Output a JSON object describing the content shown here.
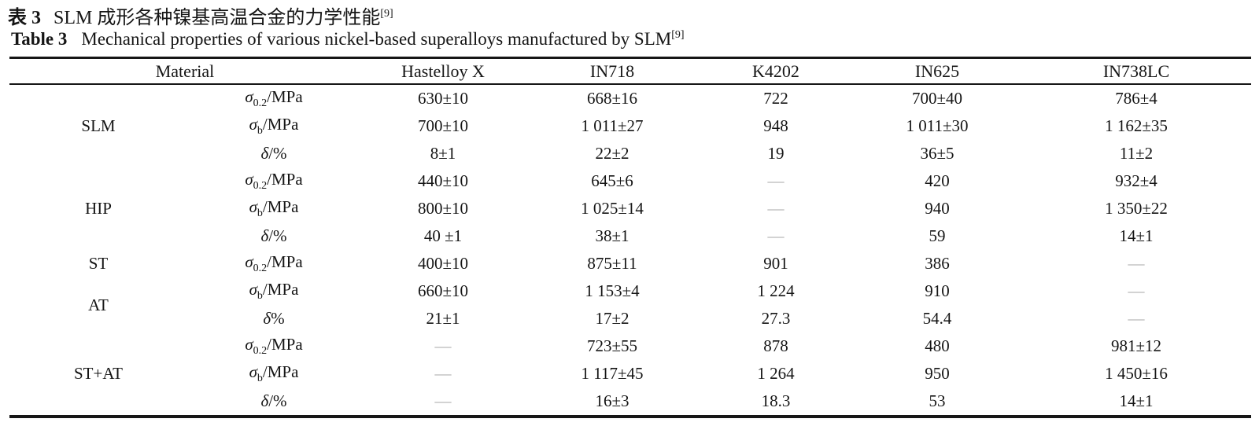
{
  "captions": {
    "cn_label": "表 3",
    "cn_text": "SLM 成形各种镍基高温合金的力学性能",
    "cn_ref": "[9]",
    "en_label": "Table 3",
    "en_text": "Mechanical properties of various nickel-based superalloys manufactured by SLM",
    "en_ref": "[9]"
  },
  "table": {
    "material_header": "Material",
    "alloy_columns": [
      "Hastelloy X",
      "IN718",
      "K4202",
      "IN625",
      "IN738LC"
    ],
    "dash": "—",
    "dash_color": "#a7a7a7",
    "groups": [
      {
        "label": "SLM",
        "rows": [
          {
            "property": {
              "base": "σ",
              "sub": "0.2",
              "suffix": "/MPa"
            },
            "values": [
              "630±10",
              "668±16",
              "722",
              "700±40",
              "786±4"
            ]
          },
          {
            "property": {
              "base": "σ",
              "sub": "b",
              "suffix": "/MPa"
            },
            "values": [
              "700±10",
              "1 011±27",
              "948",
              "1 011±30",
              "1 162±35"
            ]
          },
          {
            "property": {
              "base": "δ",
              "sub": "",
              "suffix": "/%"
            },
            "values": [
              "8±1",
              "22±2",
              "19",
              "36±5",
              "11±2"
            ]
          }
        ]
      },
      {
        "label": "HIP",
        "rows": [
          {
            "property": {
              "base": "σ",
              "sub": "0.2",
              "suffix": "/MPa"
            },
            "values": [
              "440±10",
              "645±6",
              "—",
              "420",
              "932±4"
            ]
          },
          {
            "property": {
              "base": "σ",
              "sub": "b",
              "suffix": "/MPa"
            },
            "values": [
              "800±10",
              "1 025±14",
              "—",
              "940",
              "1 350±22"
            ]
          },
          {
            "property": {
              "base": "δ",
              "sub": "",
              "suffix": "/%"
            },
            "values": [
              "40 ±1",
              "38±1",
              "—",
              "59",
              "14±1"
            ]
          }
        ]
      },
      {
        "label": "ST",
        "rows": [
          {
            "property": {
              "base": "σ",
              "sub": "0.2",
              "suffix": "/MPa"
            },
            "values": [
              "400±10",
              "875±11",
              "901",
              "386",
              "—"
            ]
          }
        ]
      },
      {
        "label": "AT",
        "rows": [
          {
            "property": {
              "base": "σ",
              "sub": "b",
              "suffix": "/MPa"
            },
            "values": [
              "660±10",
              "1 153±4",
              "1 224",
              "910",
              "—"
            ]
          },
          {
            "property": {
              "base": "δ",
              "sub": "",
              "suffix": "%"
            },
            "values": [
              "21±1",
              "17±2",
              "27.3",
              "54.4",
              "—"
            ]
          }
        ]
      },
      {
        "label": "ST+AT",
        "rows": [
          {
            "property": {
              "base": "σ",
              "sub": "0.2",
              "suffix": "/MPa"
            },
            "values": [
              "—",
              "723±55",
              "878",
              "480",
              "981±12"
            ]
          },
          {
            "property": {
              "base": "σ",
              "sub": "b",
              "suffix": "/MPa"
            },
            "values": [
              "—",
              "1 117±45",
              "1 264",
              "950",
              "1 450±16"
            ]
          },
          {
            "property": {
              "base": "δ",
              "sub": "",
              "suffix": "/%"
            },
            "values": [
              "—",
              "16±3",
              "18.3",
              "53",
              "14±1"
            ]
          }
        ]
      }
    ]
  }
}
